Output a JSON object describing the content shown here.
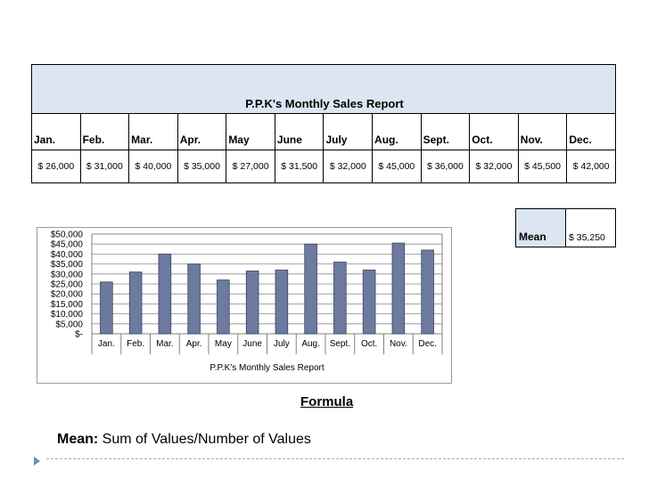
{
  "report": {
    "title": "P.P.K's Monthly Sales Report",
    "months": [
      "Jan.",
      "Feb.",
      "Mar.",
      "Apr.",
      "May",
      "June",
      "July",
      "Aug.",
      "Sept.",
      "Oct.",
      "Nov.",
      "Dec."
    ],
    "values": [
      "$   26,000",
      "$ 31,000",
      "$ 40,000",
      "$ 35,000",
      "$ 27,000",
      "$  31,500",
      "$  32,000",
      "$  45,000",
      "$ 36,000",
      "$ 32,000",
      "$  45,500",
      "$  42,000"
    ]
  },
  "mean": {
    "label": "Mean",
    "value": "$    35,250"
  },
  "chart_data": {
    "type": "bar",
    "categories": [
      "Jan.",
      "Feb.",
      "Mar.",
      "Apr.",
      "May",
      "June",
      "July",
      "Aug.",
      "Sept.",
      "Oct.",
      "Nov.",
      "Dec."
    ],
    "values": [
      26000,
      31000,
      40000,
      35000,
      27000,
      31500,
      32000,
      45000,
      36000,
      32000,
      45500,
      42000
    ],
    "xlabel": "P.P.K's Monthly Sales Report",
    "ylabel": "",
    "ylim": [
      0,
      50000
    ],
    "yticks": [
      "$-",
      "$5,000",
      "$10,000",
      "$15,000",
      "$20,000",
      "$25,000",
      "$30,000",
      "$35,000",
      "$40,000",
      "$45,000",
      "$50,000"
    ],
    "grid": true,
    "bar_color": "#6d7a9f"
  },
  "formula": {
    "heading": "Formula",
    "mean_label": "Mean:",
    "mean_text": " Sum of Values/Number of Values"
  }
}
